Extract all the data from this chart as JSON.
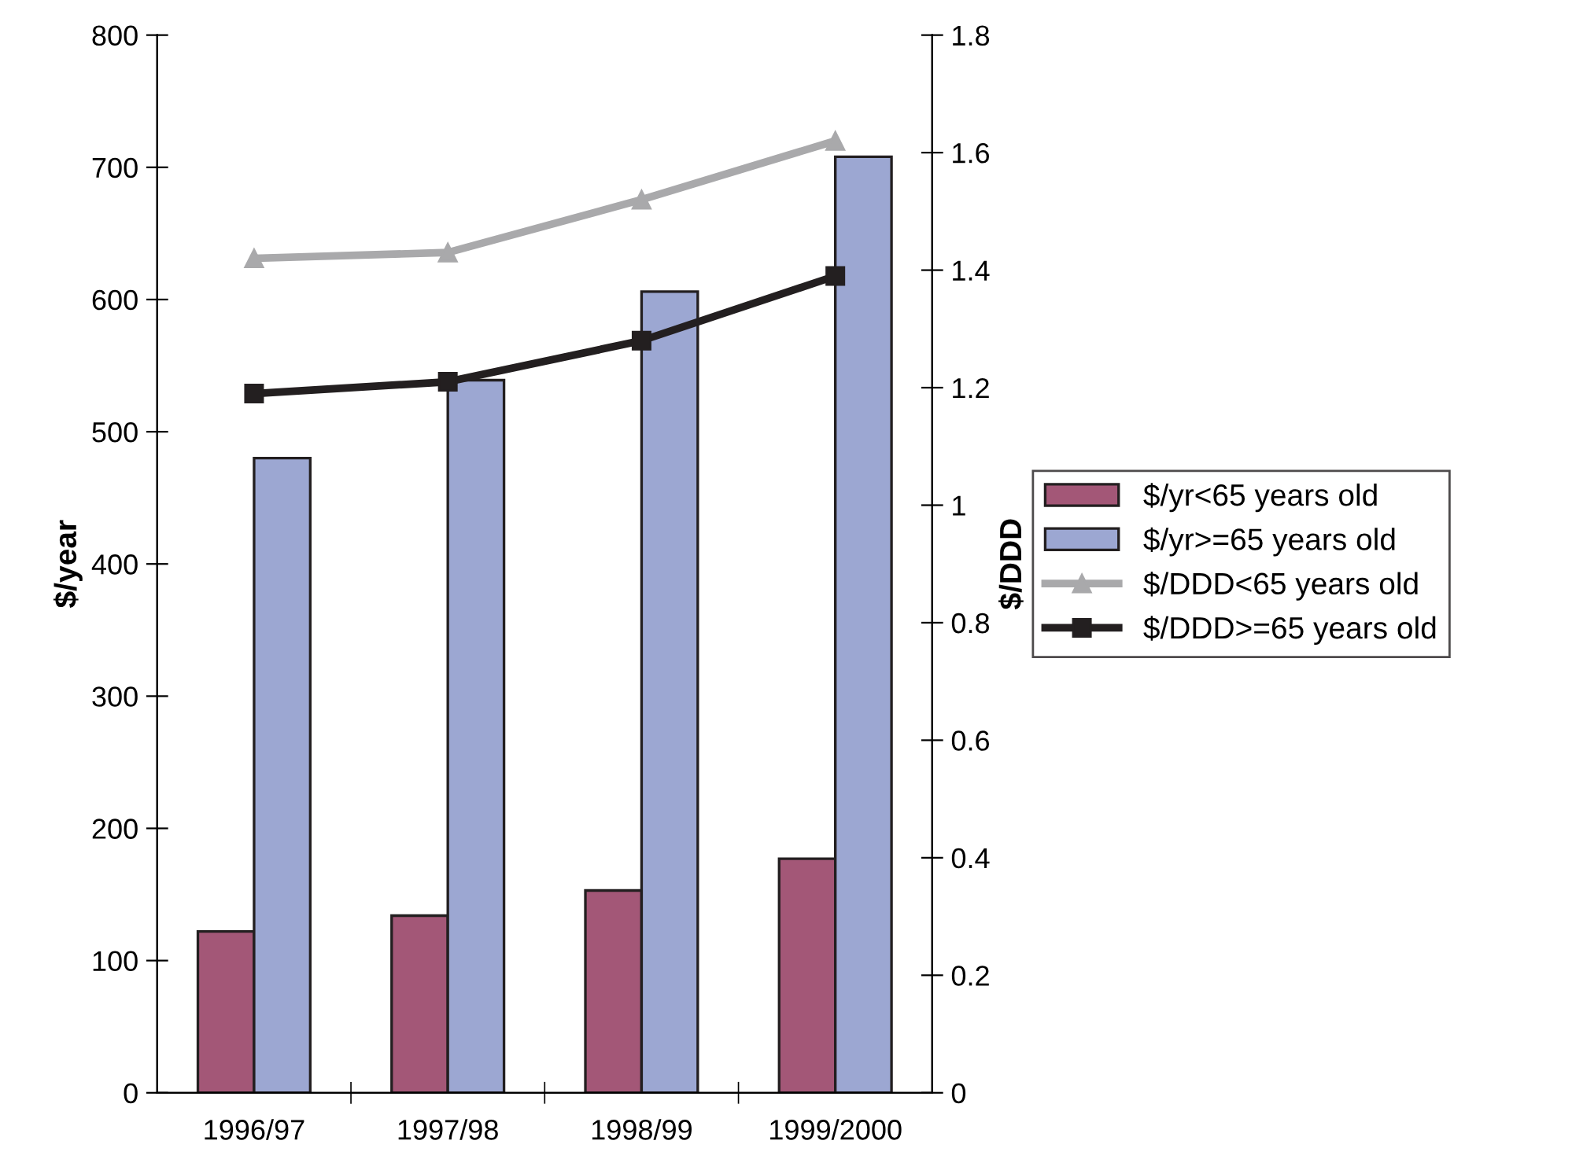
{
  "chart_data": {
    "type": "bar",
    "ylabel": "$/year",
    "y2label": "$/DDD",
    "categories": [
      "1996/97",
      "1997/98",
      "1998/99",
      "1999/2000"
    ],
    "series": [
      {
        "name": "$/yr<65 years old",
        "color": "#a35777",
        "values": [
          122,
          134,
          153,
          177
        ]
      },
      {
        "name": "$/yr>=65 years old",
        "color": "#9ca7d2",
        "values": [
          480,
          539,
          606,
          708
        ]
      },
      {
        "name": "$/DDD<65 years old",
        "type": "line",
        "axis": "y2",
        "color": "#a9a9ab",
        "marker": "triangle",
        "values": [
          1.42,
          1.43,
          1.52,
          1.62
        ]
      },
      {
        "name": "$/DDD>=65 years old",
        "type": "line",
        "axis": "y2",
        "color": "#231f20",
        "marker": "square",
        "values": [
          1.19,
          1.21,
          1.28,
          1.39
        ]
      }
    ],
    "ylim": [
      0,
      800
    ],
    "yticks": [
      0,
      100,
      200,
      300,
      400,
      500,
      600,
      700,
      800
    ],
    "y2lim": [
      0,
      1.8
    ],
    "y2ticks": [
      0,
      0.2,
      0.4,
      0.6,
      0.8,
      1,
      1.2,
      1.4,
      1.6,
      1.8
    ],
    "line_style": "solid",
    "grid": false,
    "legend": "right"
  }
}
